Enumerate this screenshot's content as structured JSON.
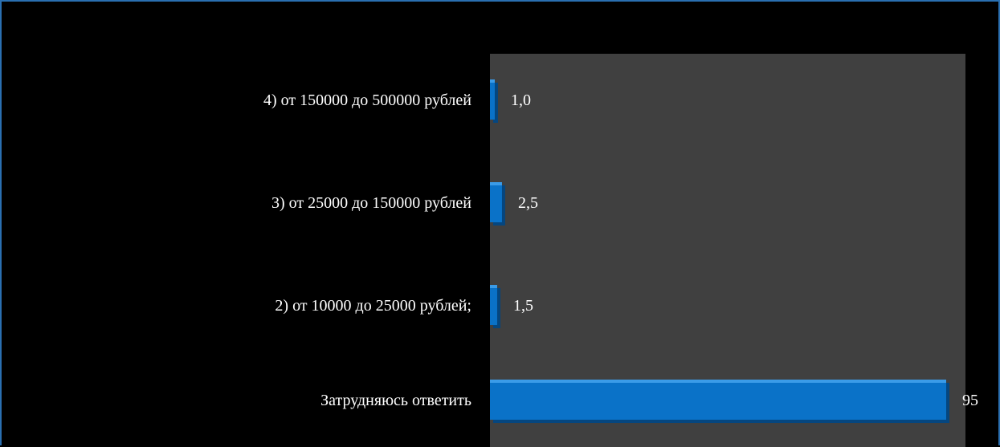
{
  "chart_data": {
    "type": "bar",
    "orientation": "horizontal",
    "categories": [
      "4) от 150000 до 500000 рублей",
      "3) от 25000 до 150000 рублей",
      "2) от 10000 до 25000 рублей;",
      "Затрудняюсь ответить"
    ],
    "values": [
      1.0,
      2.5,
      1.5,
      95
    ],
    "value_labels": [
      "1,0",
      "2,5",
      "1,5",
      "95"
    ],
    "title": "",
    "xlabel": "",
    "ylabel": "",
    "xlim": [
      0,
      100
    ],
    "grid": false,
    "legend": "none",
    "colors": {
      "background": "#000000",
      "plot_area": "#404040",
      "bar": "#0a72c8",
      "bar_top": "#3a9be8",
      "bar_dark": "#05467f",
      "text": "#ffffff",
      "frame": "#2a6fb0"
    }
  }
}
